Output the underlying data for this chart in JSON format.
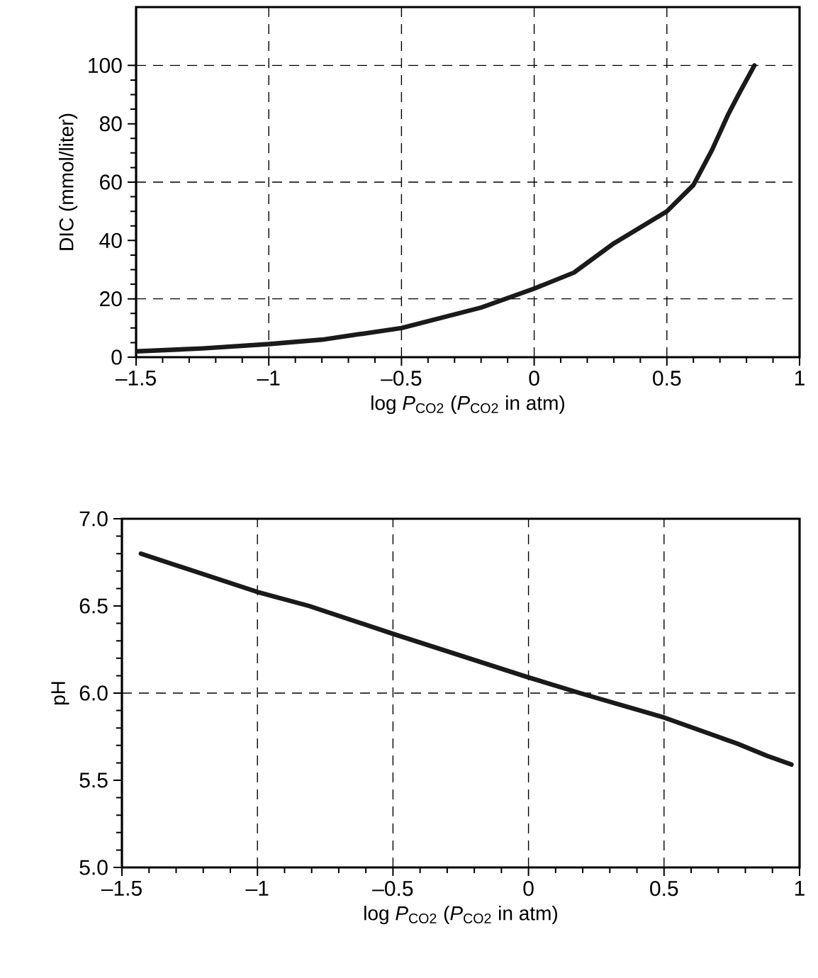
{
  "chart_data": [
    {
      "type": "line",
      "xlabel": "log *P*$_{CO2}$ (*P*$_{CO2}$ in atm)",
      "ylabel": "DIC (mmol/liter)",
      "xlim": [
        -1.5,
        1
      ],
      "ylim": [
        0,
        120
      ],
      "xticks": [
        {
          "value": -1.5,
          "label": "–1.5"
        },
        {
          "value": -1,
          "label": "–1"
        },
        {
          "value": -0.5,
          "label": "–0.5"
        },
        0,
        0.5,
        1
      ],
      "yticks": [
        0,
        20,
        40,
        60,
        80,
        100
      ],
      "grid": "x",
      "ref_lines": [
        {
          "axis": "y",
          "value": 20,
          "line_style": "dashed"
        },
        {
          "axis": "y",
          "value": 60,
          "line_style": "dashed"
        },
        {
          "axis": "y",
          "value": 100,
          "line_style": "dashed"
        }
      ],
      "series": [
        {
          "color": "#1a1a1a",
          "x": [
            -1.5,
            -1.25,
            -1,
            -0.8,
            -0.5,
            -0.2,
            0,
            0.15,
            0.3,
            0.5,
            0.6,
            0.67,
            0.73,
            0.77,
            0.83
          ],
          "values": [
            2,
            3,
            4.5,
            6,
            10,
            17,
            23.5,
            29,
            39,
            50,
            59,
            71,
            83,
            90,
            100
          ]
        }
      ]
    },
    {
      "type": "line",
      "xlabel": "log *P*$_{CO2}$ (*P*$_{CO2}$ in atm)",
      "ylabel": "pH",
      "xlim": [
        -1.5,
        1
      ],
      "ylim": [
        5,
        7
      ],
      "xticks": [
        {
          "value": -1.5,
          "label": "–1.5"
        },
        {
          "value": -1,
          "label": "–1"
        },
        {
          "value": -0.5,
          "label": "–0.5"
        },
        0,
        0.5,
        1
      ],
      "yticks": [
        {
          "value": 5,
          "label": "5.0"
        },
        {
          "value": 5.5,
          "label": "5.5"
        },
        {
          "value": 6,
          "label": "6.0"
        },
        {
          "value": 6.5,
          "label": "6.5"
        },
        {
          "value": 7,
          "label": "7.0"
        }
      ],
      "grid": "x",
      "ref_lines": [
        {
          "axis": "y",
          "value": 6,
          "line_style": "dashed"
        }
      ],
      "series": [
        {
          "color": "#1a1a1a",
          "x": [
            -1.43,
            -1,
            -0.81,
            -0.5,
            0,
            0.19,
            0.5,
            0.77,
            0.88,
            0.97
          ],
          "values": [
            6.8,
            6.58,
            6.5,
            6.34,
            6.09,
            6.0,
            5.86,
            5.71,
            5.64,
            5.59
          ]
        }
      ]
    }
  ]
}
